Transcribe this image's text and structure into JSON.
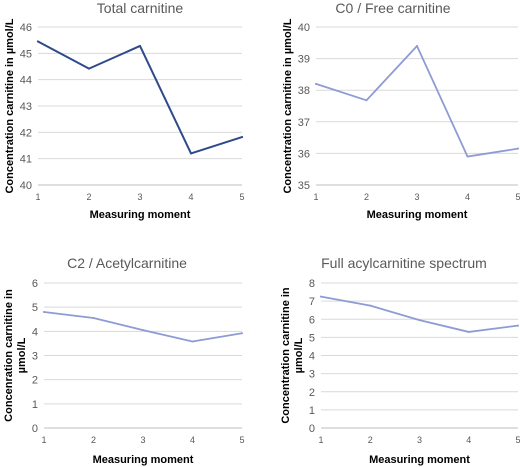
{
  "chart_data": [
    {
      "type": "line",
      "title": "Total carnitine",
      "xlabel": "Measuring moment",
      "ylabel": "Concentration carnitine in µmol/L",
      "x": [
        1,
        2,
        3,
        4,
        5
      ],
      "xticks": [
        "1",
        "2",
        "3",
        "4",
        "5"
      ],
      "yticks": [
        "40",
        "41",
        "42",
        "43",
        "44",
        "45",
        "46"
      ],
      "ylim": [
        40,
        46
      ],
      "grid": true,
      "series": [
        {
          "values": [
            45.45,
            44.42,
            45.28,
            41.2,
            41.82
          ]
        }
      ],
      "color": "#2e4a8a"
    },
    {
      "type": "line",
      "title": "C0 / Free carnitine",
      "xlabel": "Measuring moment",
      "ylabel": "Concentration carnitine in µmol/L",
      "x": [
        1,
        2,
        3,
        4,
        5
      ],
      "xticks": [
        "1",
        "2",
        "3",
        "4",
        "5"
      ],
      "yticks": [
        "35",
        "36",
        "37",
        "38",
        "39",
        "40"
      ],
      "ylim": [
        35,
        40
      ],
      "grid": true,
      "series": [
        {
          "values": [
            38.2,
            37.68,
            39.4,
            35.9,
            36.15
          ]
        }
      ],
      "color": "#8f9bd3"
    },
    {
      "type": "line",
      "title": "C2 / Acetylcarnitine",
      "xlabel": "Measuring moment",
      "ylabel_lines": [
        "Concenration carnitine in",
        "µmol/L"
      ],
      "x": [
        1,
        2,
        3,
        4,
        5
      ],
      "xticks": [
        "1",
        "2",
        "3",
        "4",
        "5"
      ],
      "yticks": [
        "0",
        "1",
        "2",
        "3",
        "4",
        "5",
        "6"
      ],
      "ylim": [
        0,
        6
      ],
      "grid": true,
      "series": [
        {
          "values": [
            4.8,
            4.55,
            4.05,
            3.58,
            3.92
          ]
        }
      ],
      "color": "#8f9bd3"
    },
    {
      "type": "line",
      "title": "Full acylcarnitine spectrum",
      "xlabel": "Measuring moment",
      "ylabel_lines": [
        "Concentration carnitine in",
        "µmol/L"
      ],
      "x": [
        1,
        2,
        3,
        4,
        5
      ],
      "xticks": [
        "1",
        "2",
        "3",
        "4",
        "5"
      ],
      "yticks": [
        "0",
        "1",
        "2",
        "3",
        "4",
        "5",
        "6",
        "7",
        "8"
      ],
      "ylim": [
        0,
        8
      ],
      "grid": true,
      "series": [
        {
          "values": [
            7.25,
            6.75,
            5.95,
            5.3,
            5.65
          ]
        }
      ],
      "color": "#8f9bd3"
    }
  ]
}
